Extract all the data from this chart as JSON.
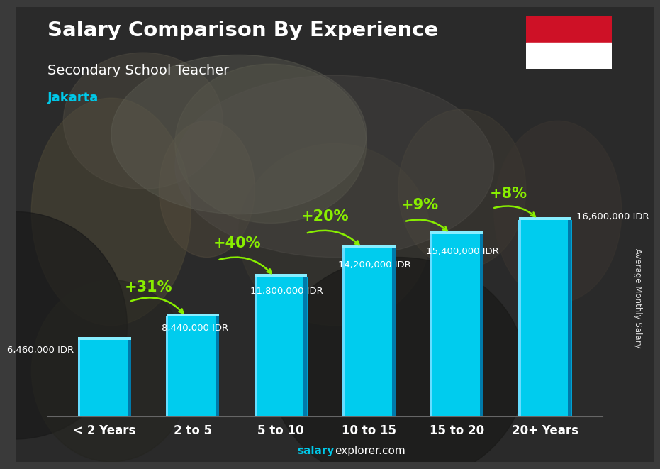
{
  "title": "Salary Comparison By Experience",
  "subtitle": "Secondary School Teacher",
  "city": "Jakarta",
  "categories": [
    "< 2 Years",
    "2 to 5",
    "5 to 10",
    "10 to 15",
    "15 to 20",
    "20+ Years"
  ],
  "values": [
    6460000,
    8440000,
    11800000,
    14200000,
    15400000,
    16600000
  ],
  "value_labels": [
    "6,460,000 IDR",
    "8,440,000 IDR",
    "11,800,000 IDR",
    "14,200,000 IDR",
    "15,400,000 IDR",
    "16,600,000 IDR"
  ],
  "pct_changes": [
    null,
    "+31%",
    "+40%",
    "+20%",
    "+9%",
    "+8%"
  ],
  "pct_color": "#88ee00",
  "bar_color_main": "#00c8e8",
  "bar_color_right": "#007aaa",
  "bar_color_top": "#aaf0ff",
  "title_color": "#ffffff",
  "subtitle_color": "#ffffff",
  "city_color": "#00c8e8",
  "bg_color": "#3a3a3a",
  "ylabel": "Average Monthly Salary",
  "ylim": [
    0,
    20000000
  ],
  "bar_width": 0.6,
  "flag_red": "#ce1126",
  "flag_white": "#ffffff"
}
